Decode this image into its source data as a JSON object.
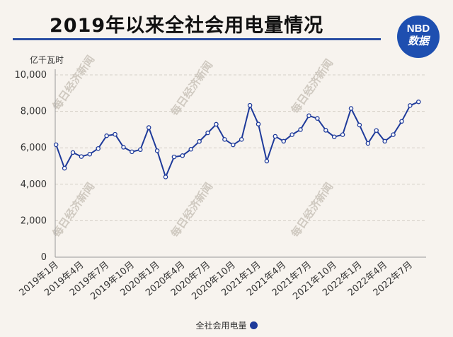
{
  "header": {
    "title": "2019年以来全社会用电量情况",
    "logo_line1": "NBD",
    "logo_line2": "数据",
    "watermark": "每日经济新闻"
  },
  "colors": {
    "line": "#1e3a9a",
    "rule": "#2a4da3",
    "logo": "#1e4fb0",
    "grid": "#d5d0c8"
  },
  "chart_data": {
    "type": "line",
    "title": "2019年以来全社会用电量情况",
    "ylabel": "亿千瓦时",
    "xlabel": "",
    "ylim": [
      0,
      10000
    ],
    "yticks": [
      0,
      2000,
      4000,
      6000,
      8000,
      10000
    ],
    "ytick_labels": [
      "0",
      "2,000",
      "4,000",
      "6,000",
      "8,000",
      "10,000"
    ],
    "grid": true,
    "legend_position": "bottom",
    "x": [
      "2019年1月",
      "2019年2月",
      "2019年3月",
      "2019年4月",
      "2019年5月",
      "2019年6月",
      "2019年7月",
      "2019年8月",
      "2019年9月",
      "2019年10月",
      "2019年11月",
      "2019年12月",
      "2020年1月",
      "2020年2月",
      "2020年3月",
      "2020年4月",
      "2020年5月",
      "2020年6月",
      "2020年7月",
      "2020年8月",
      "2020年9月",
      "2020年10月",
      "2020年11月",
      "2020年12月",
      "2021年1月",
      "2021年2月",
      "2021年3月",
      "2021年4月",
      "2021年5月",
      "2021年6月",
      "2021年7月",
      "2021年8月",
      "2021年9月",
      "2021年10月",
      "2021年11月",
      "2021年12月",
      "2022年1月",
      "2022年2月",
      "2022年3月",
      "2022年4月",
      "2022年5月",
      "2022年6月",
      "2022年7月",
      "2022年8月"
    ],
    "xtick_labels": [
      "2019年1月",
      "2019年4月",
      "2019年7月",
      "2019年10月",
      "2020年1月",
      "2020年4月",
      "2020年7月",
      "2020年10月",
      "2021年1月",
      "2021年4月",
      "2021年7月",
      "2021年10月",
      "2022年1月",
      "2022年4月",
      "2022年7月"
    ],
    "series": [
      {
        "name": "全社会用电量",
        "values": [
          6170,
          4880,
          5740,
          5520,
          5650,
          5960,
          6660,
          6740,
          6030,
          5780,
          5900,
          7110,
          5840,
          4400,
          5500,
          5570,
          5920,
          6350,
          6820,
          7290,
          6460,
          6160,
          6460,
          8330,
          7300,
          5270,
          6630,
          6360,
          6720,
          7000,
          7760,
          7610,
          6960,
          6600,
          6720,
          8160,
          7250,
          6240,
          6950,
          6360,
          6720,
          7450,
          8320,
          8520
        ]
      }
    ]
  }
}
